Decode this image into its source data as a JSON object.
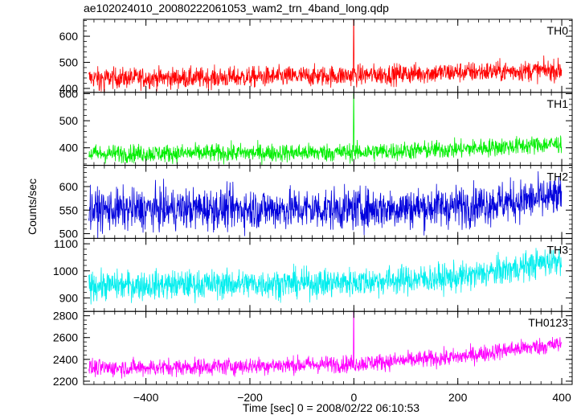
{
  "chart_data": {
    "type": "line",
    "title": "ae102024010_20080222061053_wam2_trn_4band_long.qdp",
    "xlabel": "Time [sec] 0 = 2008/02/22 06:10:53",
    "ylabel": "Counts/sec",
    "xlim": [
      -520,
      420
    ],
    "xticks": [
      -400,
      -200,
      0,
      200,
      400
    ],
    "xtick_labels": [
      "−400",
      "−200",
      "0",
      "200",
      "400"
    ],
    "x_range": [
      -510,
      400
    ],
    "panels": [
      {
        "name": "TH0",
        "color": "#ff0000",
        "ylim": [
          385,
          665
        ],
        "yticks": [
          400,
          500,
          600
        ],
        "ytick_labels": [
          "400",
          "500",
          "600"
        ],
        "trend": [
          [
            -510,
            440
          ],
          [
            -300,
            440
          ],
          [
            0,
            450
          ],
          [
            200,
            462
          ],
          [
            400,
            470
          ]
        ],
        "noise": 20,
        "spike": {
          "x": 0,
          "y": 675
        },
        "dips": [
          {
            "x": -480,
            "y": 388
          },
          {
            "x": -490,
            "y": 392
          }
        ]
      },
      {
        "name": "TH1",
        "color": "#00ee00",
        "ylim": [
          335,
          605
        ],
        "yticks": [
          400,
          500,
          600
        ],
        "ytick_labels": [
          "400",
          "500",
          "600"
        ],
        "trend": [
          [
            -510,
            378
          ],
          [
            -300,
            380
          ],
          [
            0,
            383
          ],
          [
            200,
            395
          ],
          [
            400,
            415
          ]
        ],
        "noise": 17,
        "spike": {
          "x": 0,
          "y": 600
        },
        "dips": []
      },
      {
        "name": "TH2",
        "color": "#0000dd",
        "ylim": [
          490,
          645
        ],
        "yticks": [
          500,
          550,
          600
        ],
        "ytick_labels": [
          "500",
          "550",
          "600"
        ],
        "trend": [
          [
            -510,
            550
          ],
          [
            -300,
            553
          ],
          [
            0,
            552
          ],
          [
            200,
            558
          ],
          [
            400,
            578
          ]
        ],
        "noise": 22,
        "spike": null,
        "dips": []
      },
      {
        "name": "TH3",
        "color": "#00eeee",
        "ylim": [
          850,
          1120
        ],
        "yticks": [
          900,
          1000,
          1100
        ],
        "ytick_labels": [
          "900",
          "1000",
          "1100"
        ],
        "trend": [
          [
            -510,
            945
          ],
          [
            -300,
            950
          ],
          [
            -50,
            955
          ],
          [
            200,
            975
          ],
          [
            300,
            1005
          ],
          [
            400,
            1045
          ]
        ],
        "noise": 27,
        "spike": null,
        "dips": []
      },
      {
        "name": "TH0123",
        "color": "#ff00ff",
        "ylim": [
          2170,
          2840
        ],
        "yticks": [
          2200,
          2400,
          2600,
          2800
        ],
        "ytick_labels": [
          "2200",
          "2400",
          "2600",
          "2800"
        ],
        "trend": [
          [
            -510,
            2320
          ],
          [
            -300,
            2330
          ],
          [
            0,
            2360
          ],
          [
            200,
            2420
          ],
          [
            300,
            2490
          ],
          [
            400,
            2540
          ]
        ],
        "noise": 40,
        "spike": {
          "x": 0,
          "y": 2840
        },
        "dips": []
      }
    ]
  }
}
